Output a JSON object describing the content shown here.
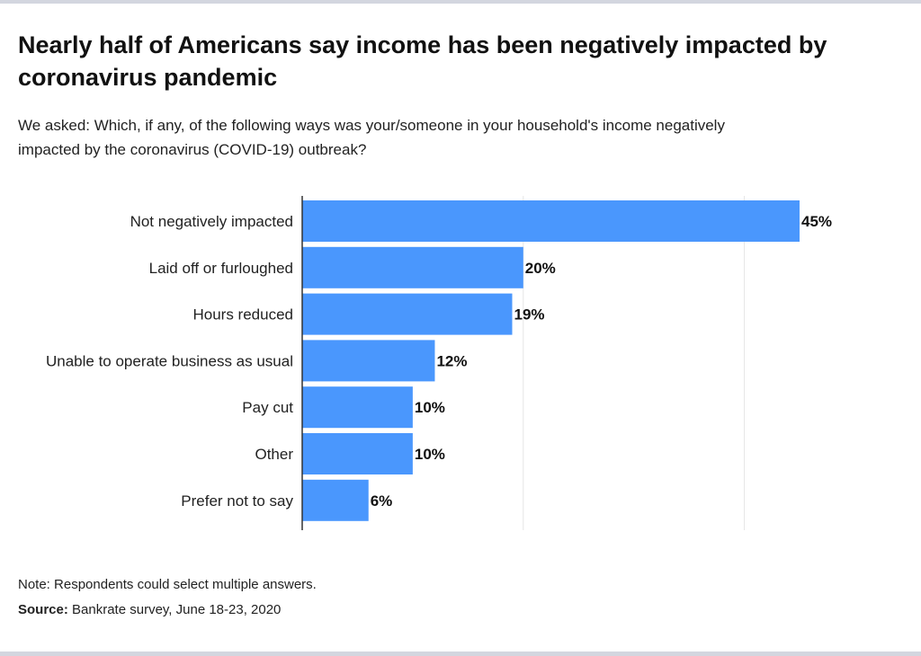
{
  "title": "Nearly half of Americans say income has been negatively impacted by coronavirus pandemic",
  "subtitle": "We asked: Which, if any, of the following ways was your/someone in your household's income negatively impacted by the coronavirus (COVID-19) outbreak?",
  "note": "Note: Respondents could select multiple answers.",
  "source_label": "Source:",
  "source_text": "Bankrate survey, June 18-23, 2020",
  "colors": {
    "bar": "#4a97fd",
    "border": "#d3d6df"
  },
  "chart_data": {
    "type": "bar",
    "orientation": "horizontal",
    "categories": [
      "Not negatively impacted",
      "Laid off or furloughed",
      "Hours reduced",
      "Unable to operate business as usual",
      "Pay cut",
      "Other",
      "Prefer not to say"
    ],
    "values": [
      45,
      20,
      19,
      12,
      10,
      10,
      6
    ],
    "data_labels": [
      "45%",
      "20%",
      "19%",
      "12%",
      "10%",
      "10%",
      "6%"
    ],
    "xlim": [
      0,
      45
    ],
    "gridlines_at": [
      20,
      40
    ],
    "grid": true
  }
}
